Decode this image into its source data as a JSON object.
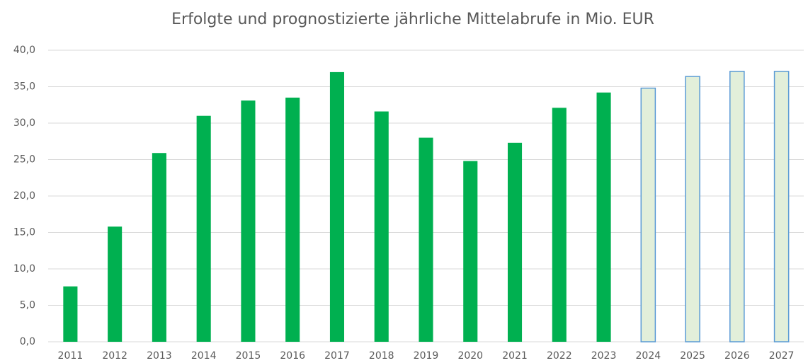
{
  "chart_data": {
    "type": "bar",
    "title": "Erfolgte und prognostizierte jährliche Mittelabrufe in Mio. EUR",
    "categories": [
      "2011",
      "2012",
      "2013",
      "2014",
      "2015",
      "2016",
      "2017",
      "2018",
      "2019",
      "2020",
      "2021",
      "2022",
      "2023",
      "2024",
      "2025",
      "2026",
      "2027"
    ],
    "values": [
      7.6,
      15.8,
      25.9,
      31.0,
      33.1,
      33.5,
      37.0,
      31.6,
      28.0,
      24.8,
      27.3,
      32.1,
      34.2,
      34.8,
      36.4,
      37.1,
      37.1
    ],
    "colors": [
      "#00b050",
      "#00b050",
      "#00b050",
      "#00b050",
      "#00b050",
      "#00b050",
      "#00b050",
      "#00b050",
      "#00b050",
      "#00b050",
      "#00b050",
      "#00b050",
      "#00b050",
      "#e2efda",
      "#e2efda",
      "#e2efda",
      "#e2efda"
    ],
    "edgecolors": [
      null,
      null,
      null,
      null,
      null,
      null,
      null,
      null,
      null,
      null,
      null,
      null,
      null,
      "#5b9bd5",
      "#5b9bd5",
      "#5b9bd5",
      "#5b9bd5"
    ],
    "ylim": [
      0,
      40
    ],
    "yticks": [
      {
        "value": 0,
        "label": "0,0"
      },
      {
        "value": 5,
        "label": "5,0"
      },
      {
        "value": 10,
        "label": "10,0"
      },
      {
        "value": 15,
        "label": "15,0"
      },
      {
        "value": 20,
        "label": "20,0"
      },
      {
        "value": 25,
        "label": "25,0"
      },
      {
        "value": 30,
        "label": "30,0"
      },
      {
        "value": 35,
        "label": "35,0"
      },
      {
        "value": 40,
        "label": "40,0"
      }
    ],
    "grid": true
  }
}
